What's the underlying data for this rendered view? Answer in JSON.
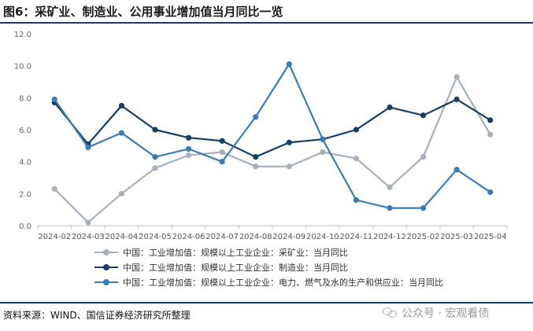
{
  "title": "图6：采矿业、制造业、公用事业增加值当月同比一览",
  "source": "资料来源：WIND、国信证券经济研究所整理",
  "watermark": "公众号 · 宏观看债",
  "chart_data": {
    "type": "line",
    "categories": [
      "2024-02",
      "2024-03",
      "2024-04",
      "2024-05",
      "2024-06",
      "2024-07",
      "2024-08",
      "2024-09",
      "2024-10",
      "2024-11",
      "2024-12",
      "2025-02",
      "2025-03",
      "2025-04"
    ],
    "ylim": [
      0,
      12
    ],
    "yticks": [
      "0.0",
      "2.0",
      "4.0",
      "6.0",
      "8.0",
      "10.0",
      "12.0"
    ],
    "grid": false,
    "legend_position": "bottom",
    "series": [
      {
        "name": "中国：工业增加值：规模以上工业企业：采矿业：当月同比",
        "color": "#a6b1bd",
        "values": [
          2.3,
          0.2,
          2.0,
          3.6,
          4.4,
          4.6,
          3.7,
          3.7,
          4.6,
          4.2,
          2.4,
          4.3,
          9.3,
          5.7
        ]
      },
      {
        "name": "中国：工业增加值：规模以上工业企业：制造业：当月同比",
        "color": "#173f66",
        "values": [
          7.7,
          5.1,
          7.5,
          6.0,
          5.5,
          5.3,
          4.3,
          5.2,
          5.4,
          6.0,
          7.4,
          6.9,
          7.9,
          6.6
        ]
      },
      {
        "name": "中国：工业增加值：规模以上工业企业：电力、燃气及水的生产和供应业：当月同比",
        "color": "#3a7db5",
        "values": [
          7.9,
          4.9,
          5.8,
          4.3,
          4.8,
          4.0,
          6.8,
          10.1,
          5.4,
          1.6,
          1.1,
          1.1,
          3.5,
          2.1
        ]
      }
    ]
  }
}
